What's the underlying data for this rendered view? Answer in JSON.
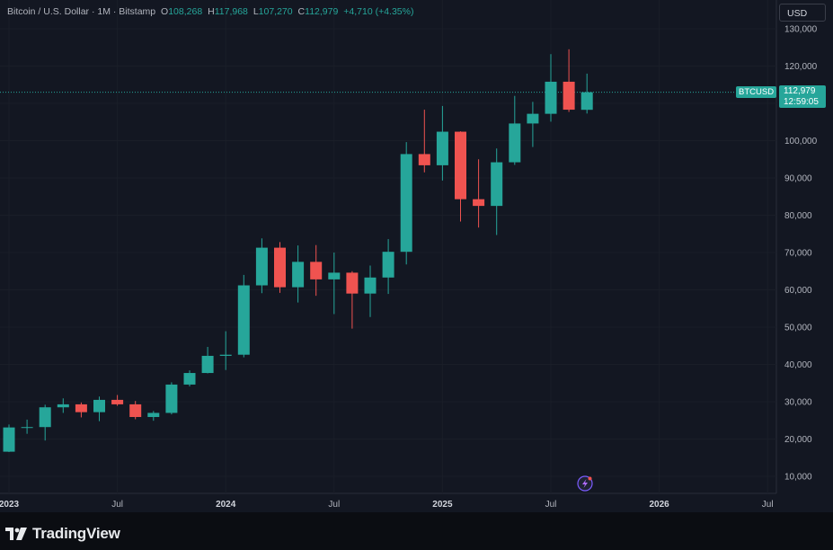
{
  "legend": {
    "symbol": "Bitcoin / U.S. Dollar · 1M · Bitstamp",
    "o_label": "O",
    "o_value": "108,268",
    "h_label": "H",
    "h_value": "117,968",
    "l_label": "L",
    "l_value": "107,270",
    "c_label": "C",
    "c_value": "112,979",
    "change": "+4,710 (+4.35%)"
  },
  "currency_button": "USD",
  "symbol_tag": "BTCUSD",
  "price_tag": {
    "price": "112,979",
    "countdown": "12:59:05"
  },
  "logo_text": "TradingView",
  "colors": {
    "up": "#26a69a",
    "down": "#ef5350",
    "grid": "#1a1e28",
    "bg": "#131722"
  },
  "chart_data": {
    "type": "candlestick",
    "title": "Bitcoin / U.S. Dollar · 1M · Bitstamp",
    "y_ticks": [
      "10,000",
      "20,000",
      "30,000",
      "40,000",
      "50,000",
      "60,000",
      "70,000",
      "80,000",
      "90,000",
      "100,000",
      "110,000",
      "120,000",
      "130,000"
    ],
    "x_ticks": [
      "2023",
      "Jul",
      "2024",
      "Jul",
      "2025",
      "Jul",
      "2026",
      "Jul"
    ],
    "ylim": [
      4000,
      134000
    ],
    "last_price": 112979,
    "candles": [
      {
        "m": "2023-01",
        "o": 16600,
        "h": 23900,
        "l": 16500,
        "c": 23100
      },
      {
        "m": "2023-02",
        "o": 23100,
        "h": 25200,
        "l": 21400,
        "c": 23200
      },
      {
        "m": "2023-03",
        "o": 23200,
        "h": 29200,
        "l": 19600,
        "c": 28500
      },
      {
        "m": "2023-04",
        "o": 28500,
        "h": 30900,
        "l": 27000,
        "c": 29300
      },
      {
        "m": "2023-05",
        "o": 29300,
        "h": 29800,
        "l": 25800,
        "c": 27200
      },
      {
        "m": "2023-06",
        "o": 27200,
        "h": 31400,
        "l": 24800,
        "c": 30500
      },
      {
        "m": "2023-07",
        "o": 30500,
        "h": 31800,
        "l": 28900,
        "c": 29300
      },
      {
        "m": "2023-08",
        "o": 29300,
        "h": 30200,
        "l": 25300,
        "c": 25900
      },
      {
        "m": "2023-09",
        "o": 25900,
        "h": 27500,
        "l": 24900,
        "c": 27000
      },
      {
        "m": "2023-10",
        "o": 27000,
        "h": 35200,
        "l": 26600,
        "c": 34600
      },
      {
        "m": "2023-11",
        "o": 34600,
        "h": 38400,
        "l": 34100,
        "c": 37700
      },
      {
        "m": "2023-12",
        "o": 37700,
        "h": 44700,
        "l": 37600,
        "c": 42300
      },
      {
        "m": "2024-01",
        "o": 42300,
        "h": 48900,
        "l": 38500,
        "c": 42600
      },
      {
        "m": "2024-02",
        "o": 42600,
        "h": 64000,
        "l": 41900,
        "c": 61200
      },
      {
        "m": "2024-03",
        "o": 61200,
        "h": 73800,
        "l": 59100,
        "c": 71300
      },
      {
        "m": "2024-04",
        "o": 71300,
        "h": 72800,
        "l": 59200,
        "c": 60700
      },
      {
        "m": "2024-05",
        "o": 60700,
        "h": 71900,
        "l": 56600,
        "c": 67500
      },
      {
        "m": "2024-06",
        "o": 67500,
        "h": 72000,
        "l": 58400,
        "c": 62800
      },
      {
        "m": "2024-07",
        "o": 62800,
        "h": 70000,
        "l": 53500,
        "c": 64600
      },
      {
        "m": "2024-08",
        "o": 64600,
        "h": 65000,
        "l": 49600,
        "c": 59000
      },
      {
        "m": "2024-09",
        "o": 59000,
        "h": 66500,
        "l": 52700,
        "c": 63300
      },
      {
        "m": "2024-10",
        "o": 63300,
        "h": 73600,
        "l": 58900,
        "c": 70200
      },
      {
        "m": "2024-11",
        "o": 70200,
        "h": 99600,
        "l": 66800,
        "c": 96400
      },
      {
        "m": "2024-12",
        "o": 96400,
        "h": 108300,
        "l": 91500,
        "c": 93400
      },
      {
        "m": "2025-01",
        "o": 93400,
        "h": 109300,
        "l": 89300,
        "c": 102400
      },
      {
        "m": "2025-02",
        "o": 102400,
        "h": 102500,
        "l": 78300,
        "c": 84300
      },
      {
        "m": "2025-03",
        "o": 84300,
        "h": 95000,
        "l": 76700,
        "c": 82500
      },
      {
        "m": "2025-04",
        "o": 82500,
        "h": 97900,
        "l": 74700,
        "c": 94200
      },
      {
        "m": "2025-05",
        "o": 94200,
        "h": 112000,
        "l": 93500,
        "c": 104600
      },
      {
        "m": "2025-06",
        "o": 104600,
        "h": 110400,
        "l": 98300,
        "c": 107200
      },
      {
        "m": "2025-07",
        "o": 107200,
        "h": 123200,
        "l": 105100,
        "c": 115800
      },
      {
        "m": "2025-08",
        "o": 115800,
        "h": 124500,
        "l": 107700,
        "c": 108300
      },
      {
        "m": "2025-09",
        "o": 108268,
        "h": 117968,
        "l": 107270,
        "c": 112979
      }
    ]
  }
}
